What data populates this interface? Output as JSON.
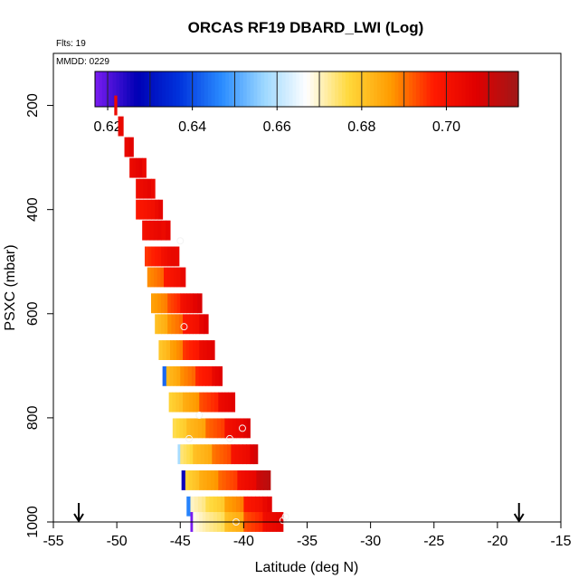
{
  "chart_data": {
    "type": "heatmap",
    "title": "ORCAS RF19 DBARD_LWI (Log)",
    "flights_label": "Flts: 19",
    "date_label": "MMDD: 0229",
    "xlabel": "Latitude (deg N)",
    "ylabel": "PSXC (mbar)",
    "xlim": [
      -55,
      -15
    ],
    "ylim": [
      1000,
      100
    ],
    "xticks": [
      -55,
      -50,
      -45,
      -40,
      -35,
      -30,
      -25,
      -20,
      -15
    ],
    "yticks": [
      200,
      400,
      600,
      800,
      1000
    ],
    "colorbar": {
      "range": [
        0.617,
        0.717
      ],
      "ticks": [
        0.62,
        0.64,
        0.66,
        0.68,
        0.7
      ],
      "tick_labels": [
        "0.62",
        "0.64",
        "0.66",
        "0.68",
        "0.70"
      ],
      "boundaries": [
        0.62,
        0.63,
        0.64,
        0.65,
        0.66,
        0.67,
        0.68,
        0.69,
        0.7,
        0.71
      ],
      "colormap": [
        "#7a1cf0",
        "#0000b4",
        "#0033dd",
        "#2a8cff",
        "#9dd8ff",
        "#ffffff",
        "#ffd83a",
        "#ff9a00",
        "#ff1a00",
        "#e00000",
        "#a01818"
      ]
    },
    "markers_lat": [
      -53.0,
      -18.3
    ],
    "rows": [
      {
        "p": 200,
        "segs": [
          [
            -50.2,
            -50.0,
            0.705
          ]
        ]
      },
      {
        "p": 240,
        "segs": [
          [
            -49.9,
            -49.5,
            0.706
          ]
        ]
      },
      {
        "p": 280,
        "segs": [
          [
            -49.4,
            -48.7,
            0.706
          ]
        ]
      },
      {
        "p": 320,
        "segs": [
          [
            -49.0,
            -48.0,
            0.705
          ],
          [
            -48.0,
            -47.7,
            0.705
          ]
        ]
      },
      {
        "p": 360,
        "segs": [
          [
            -48.5,
            -47.3,
            0.704
          ],
          [
            -47.3,
            -47.0,
            0.705
          ]
        ]
      },
      {
        "p": 400,
        "segs": [
          [
            -48.5,
            -47.0,
            0.7
          ],
          [
            -47.0,
            -46.4,
            0.705
          ]
        ]
      },
      {
        "p": 440,
        "segs": [
          [
            -48.0,
            -46.5,
            0.703
          ],
          [
            -46.5,
            -45.8,
            0.705
          ]
        ]
      },
      {
        "p": 490,
        "segs": [
          [
            -47.8,
            -46.5,
            0.697
          ],
          [
            -46.5,
            -45.5,
            0.703
          ],
          [
            -45.5,
            -45.1,
            0.706
          ]
        ]
      },
      {
        "p": 530,
        "segs": [
          [
            -47.6,
            -46.3,
            0.69
          ],
          [
            -46.3,
            -45.0,
            0.7
          ],
          [
            -45.0,
            -44.6,
            0.706
          ]
        ]
      },
      {
        "p": 580,
        "segs": [
          [
            -47.3,
            -46.0,
            0.688
          ],
          [
            -46.0,
            -45.0,
            0.695
          ],
          [
            -45.0,
            -44.0,
            0.703
          ],
          [
            -44.0,
            -43.3,
            0.708
          ]
        ]
      },
      {
        "p": 620,
        "segs": [
          [
            -47.0,
            -46.0,
            0.683
          ],
          [
            -46.0,
            -44.8,
            0.69
          ],
          [
            -44.8,
            -43.5,
            0.7
          ],
          [
            -43.5,
            -42.8,
            0.707
          ]
        ]
      },
      {
        "p": 670,
        "segs": [
          [
            -46.7,
            -45.8,
            0.682
          ],
          [
            -45.8,
            -44.8,
            0.688
          ],
          [
            -44.8,
            -43.5,
            0.697
          ],
          [
            -43.5,
            -42.3,
            0.705
          ]
        ]
      },
      {
        "p": 720,
        "segs": [
          [
            -46.4,
            -46.1,
            0.645
          ],
          [
            -46.1,
            -45.0,
            0.684
          ],
          [
            -45.0,
            -43.8,
            0.69
          ],
          [
            -43.8,
            -42.5,
            0.698
          ],
          [
            -42.5,
            -41.7,
            0.706
          ]
        ]
      },
      {
        "p": 770,
        "segs": [
          [
            -45.9,
            -44.8,
            0.68
          ],
          [
            -44.8,
            -43.5,
            0.686
          ],
          [
            -43.5,
            -42.0,
            0.695
          ],
          [
            -42.0,
            -40.7,
            0.705
          ]
        ]
      },
      {
        "p": 820,
        "segs": [
          [
            -45.6,
            -44.5,
            0.678
          ],
          [
            -44.5,
            -43.0,
            0.684
          ],
          [
            -43.0,
            -41.5,
            0.693
          ],
          [
            -41.5,
            -40.0,
            0.703
          ],
          [
            -40.0,
            -39.5,
            0.708
          ]
        ]
      },
      {
        "p": 870,
        "segs": [
          [
            -45.2,
            -45.0,
            0.66
          ],
          [
            -45.0,
            -44.0,
            0.676
          ],
          [
            -44.0,
            -42.5,
            0.683
          ],
          [
            -42.5,
            -41.0,
            0.692
          ],
          [
            -41.0,
            -39.5,
            0.702
          ],
          [
            -39.5,
            -38.9,
            0.709
          ]
        ]
      },
      {
        "p": 920,
        "segs": [
          [
            -44.9,
            -44.6,
            0.628
          ],
          [
            -44.6,
            -43.5,
            0.68
          ],
          [
            -43.5,
            -42.0,
            0.686
          ],
          [
            -42.0,
            -40.5,
            0.693
          ],
          [
            -40.5,
            -39.0,
            0.703
          ],
          [
            -39.0,
            -37.9,
            0.712
          ]
        ]
      },
      {
        "p": 970,
        "segs": [
          [
            -44.5,
            -44.2,
            0.648
          ],
          [
            -44.2,
            -43.0,
            0.672
          ],
          [
            -43.0,
            -41.5,
            0.678
          ],
          [
            -41.5,
            -40.0,
            0.688
          ],
          [
            -40.0,
            -38.5,
            0.7
          ],
          [
            -38.5,
            -37.8,
            0.706
          ]
        ]
      },
      {
        "p": 1000,
        "segs": [
          [
            -44.2,
            -44.0,
            0.619
          ],
          [
            -44.0,
            -43.0,
            0.67
          ],
          [
            -43.0,
            -41.5,
            0.674
          ],
          [
            -41.5,
            -40.0,
            0.683
          ],
          [
            -40.0,
            -38.5,
            0.695
          ],
          [
            -38.5,
            -36.9,
            0.704
          ]
        ]
      }
    ],
    "circles": [
      [
        -45.0,
        460
      ],
      [
        -44.7,
        625
      ],
      [
        -43.5,
        795
      ],
      [
        -44.3,
        840
      ],
      [
        -41.1,
        840
      ],
      [
        -40.1,
        820
      ],
      [
        -40.6,
        1000
      ],
      [
        -36.9,
        997
      ],
      [
        -36.7,
        990
      ]
    ]
  }
}
